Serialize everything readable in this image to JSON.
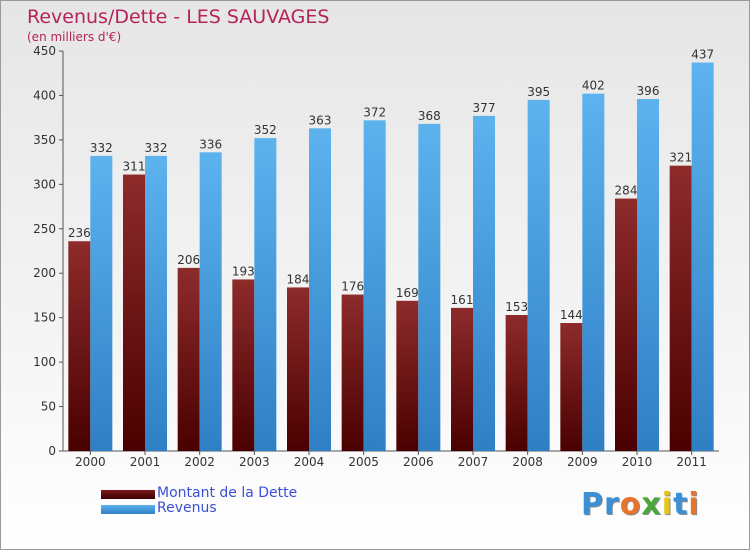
{
  "title": "Revenus/Dette - LES SAUVAGES",
  "subtitle": "(en milliers d'€)",
  "colors": {
    "title": "#b5235a",
    "legend_text": "#3a4fd6",
    "dette": "#7a1a1a",
    "revenus": "#4aa3e6"
  },
  "legend": [
    {
      "label": "Montant de la Dette",
      "color": "#5a0f0f"
    },
    {
      "label": "Revenus",
      "color": "#3f9ae0"
    }
  ],
  "brand": {
    "text": "Proxiti",
    "letter_colors": [
      "#3a8fd6",
      "#3a8fd6",
      "#e8742a",
      "#4aa83a",
      "#e8c31a",
      "#3a8fd6",
      "#e8742a"
    ]
  },
  "chart_data": {
    "type": "bar",
    "title": "Revenus/Dette - LES SAUVAGES",
    "subtitle": "(en milliers d'€)",
    "categories": [
      "2000",
      "2001",
      "2002",
      "2003",
      "2004",
      "2005",
      "2006",
      "2007",
      "2008",
      "2009",
      "2010",
      "2011"
    ],
    "series": [
      {
        "name": "Montant de la Dette",
        "values": [
          236,
          311,
          206,
          193,
          184,
          176,
          169,
          161,
          153,
          144,
          284,
          321
        ]
      },
      {
        "name": "Revenus",
        "values": [
          332,
          332,
          336,
          352,
          363,
          372,
          368,
          377,
          395,
          402,
          396,
          437
        ]
      }
    ],
    "ylim": [
      0,
      450
    ],
    "yticks": [
      0,
      50,
      100,
      150,
      200,
      250,
      300,
      350,
      400,
      450
    ],
    "grid": false,
    "legend_position": "bottom-left"
  }
}
